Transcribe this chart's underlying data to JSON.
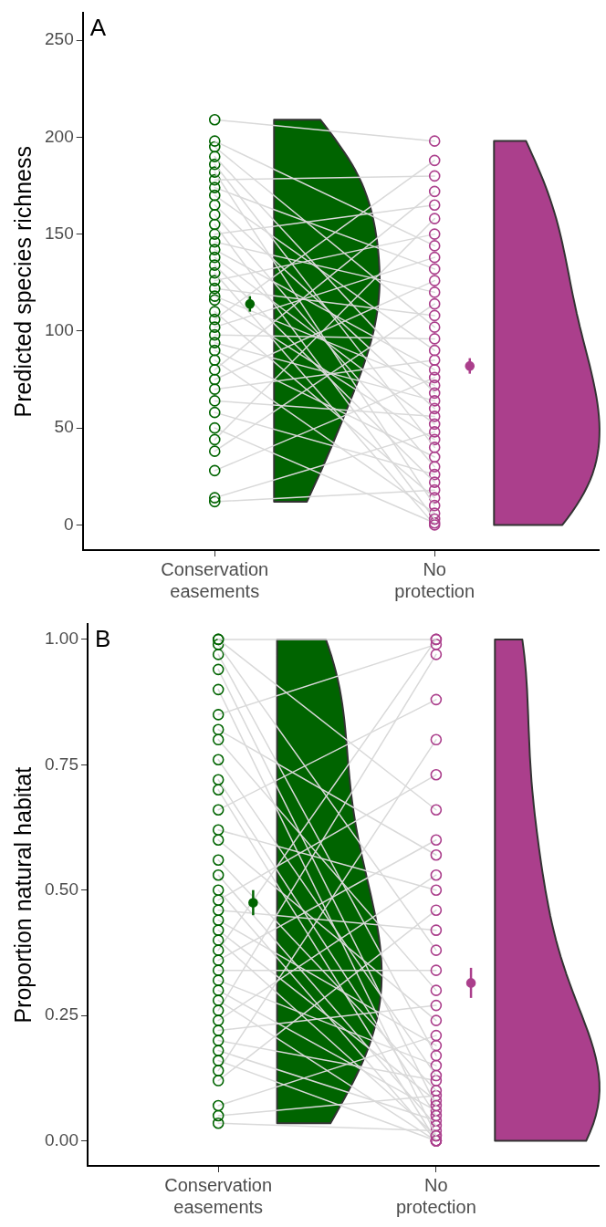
{
  "chart_data": [
    {
      "type": "scatter",
      "title": "A",
      "ylabel": "Predicted species richness",
      "categories": [
        "Conservation\neasements",
        "No\nprotection"
      ],
      "ylim": [
        -13,
        264
      ],
      "yticks": [
        0,
        50,
        100,
        150,
        200,
        250
      ],
      "grid": false,
      "legend": false,
      "marker": "circle",
      "series": [
        {
          "type": "line",
          "color": "#d9d9d9",
          "colors": [
            "#006400",
            "#ab3f8c"
          ],
          "values": [
            209,
            198
          ]
        },
        {
          "type": "line",
          "color": "#d9d9d9",
          "colors": [
            "#006400",
            "#ab3f8c"
          ],
          "values": [
            198,
            144
          ]
        },
        {
          "type": "line",
          "color": "#d9d9d9",
          "colors": [
            "#006400",
            "#ab3f8c"
          ],
          "values": [
            195,
            102
          ]
        },
        {
          "type": "line",
          "color": "#d9d9d9",
          "colors": [
            "#006400",
            "#ab3f8c"
          ],
          "values": [
            190,
            68
          ]
        },
        {
          "type": "line",
          "color": "#d9d9d9",
          "colors": [
            "#006400",
            "#ab3f8c"
          ],
          "values": [
            186,
            40
          ]
        },
        {
          "type": "line",
          "color": "#d9d9d9",
          "colors": [
            "#006400",
            "#ab3f8c"
          ],
          "values": [
            182,
            10
          ]
        },
        {
          "type": "line",
          "color": "#d9d9d9",
          "colors": [
            "#006400",
            "#ab3f8c"
          ],
          "values": [
            178,
            180
          ]
        },
        {
          "type": "line",
          "color": "#d9d9d9",
          "colors": [
            "#006400",
            "#ab3f8c"
          ],
          "values": [
            174,
            132
          ]
        },
        {
          "type": "line",
          "color": "#d9d9d9",
          "colors": [
            "#006400",
            "#ab3f8c"
          ],
          "values": [
            170,
            90
          ]
        },
        {
          "type": "line",
          "color": "#d9d9d9",
          "colors": [
            "#006400",
            "#ab3f8c"
          ],
          "values": [
            165,
            60
          ]
        },
        {
          "type": "line",
          "color": "#d9d9d9",
          "colors": [
            "#006400",
            "#ab3f8c"
          ],
          "values": [
            160,
            30
          ]
        },
        {
          "type": "line",
          "color": "#d9d9d9",
          "colors": [
            "#006400",
            "#ab3f8c"
          ],
          "values": [
            155,
            3
          ]
        },
        {
          "type": "line",
          "color": "#d9d9d9",
          "colors": [
            "#006400",
            "#ab3f8c"
          ],
          "values": [
            150,
            165
          ]
        },
        {
          "type": "line",
          "color": "#d9d9d9",
          "colors": [
            "#006400",
            "#ab3f8c"
          ],
          "values": [
            146,
            120
          ]
        },
        {
          "type": "line",
          "color": "#d9d9d9",
          "colors": [
            "#006400",
            "#ab3f8c"
          ],
          "values": [
            142,
            80
          ]
        },
        {
          "type": "line",
          "color": "#d9d9d9",
          "colors": [
            "#006400",
            "#ab3f8c"
          ],
          "values": [
            138,
            52
          ]
        },
        {
          "type": "line",
          "color": "#d9d9d9",
          "colors": [
            "#006400",
            "#ab3f8c"
          ],
          "values": [
            134,
            22
          ]
        },
        {
          "type": "line",
          "color": "#d9d9d9",
          "colors": [
            "#006400",
            "#ab3f8c"
          ],
          "values": [
            130,
            0
          ]
        },
        {
          "type": "line",
          "color": "#d9d9d9",
          "colors": [
            "#006400",
            "#ab3f8c"
          ],
          "values": [
            126,
            150
          ]
        },
        {
          "type": "line",
          "color": "#d9d9d9",
          "colors": [
            "#006400",
            "#ab3f8c"
          ],
          "values": [
            122,
            108
          ]
        },
        {
          "type": "line",
          "color": "#d9d9d9",
          "colors": [
            "#006400",
            "#ab3f8c"
          ],
          "values": [
            118,
            72
          ]
        },
        {
          "type": "line",
          "color": "#d9d9d9",
          "colors": [
            "#006400",
            "#ab3f8c"
          ],
          "values": [
            116,
            44
          ]
        },
        {
          "type": "line",
          "color": "#d9d9d9",
          "colors": [
            "#006400",
            "#ab3f8c"
          ],
          "values": [
            110,
            14
          ]
        },
        {
          "type": "line",
          "color": "#d9d9d9",
          "colors": [
            "#006400",
            "#ab3f8c"
          ],
          "values": [
            106,
            188
          ]
        },
        {
          "type": "line",
          "color": "#d9d9d9",
          "colors": [
            "#006400",
            "#ab3f8c"
          ],
          "values": [
            102,
            138
          ]
        },
        {
          "type": "line",
          "color": "#d9d9d9",
          "colors": [
            "#006400",
            "#ab3f8c"
          ],
          "values": [
            98,
            96
          ]
        },
        {
          "type": "line",
          "color": "#d9d9d9",
          "colors": [
            "#006400",
            "#ab3f8c"
          ],
          "values": [
            94,
            64
          ]
        },
        {
          "type": "line",
          "color": "#d9d9d9",
          "colors": [
            "#006400",
            "#ab3f8c"
          ],
          "values": [
            90,
            35
          ]
        },
        {
          "type": "line",
          "color": "#d9d9d9",
          "colors": [
            "#006400",
            "#ab3f8c"
          ],
          "values": [
            85,
            6
          ]
        },
        {
          "type": "line",
          "color": "#d9d9d9",
          "colors": [
            "#006400",
            "#ab3f8c"
          ],
          "values": [
            80,
            172
          ]
        },
        {
          "type": "line",
          "color": "#d9d9d9",
          "colors": [
            "#006400",
            "#ab3f8c"
          ],
          "values": [
            75,
            126
          ]
        },
        {
          "type": "line",
          "color": "#d9d9d9",
          "colors": [
            "#006400",
            "#ab3f8c"
          ],
          "values": [
            70,
            85
          ]
        },
        {
          "type": "line",
          "color": "#d9d9d9",
          "colors": [
            "#006400",
            "#ab3f8c"
          ],
          "values": [
            64,
            56
          ]
        },
        {
          "type": "line",
          "color": "#d9d9d9",
          "colors": [
            "#006400",
            "#ab3f8c"
          ],
          "values": [
            58,
            26
          ]
        },
        {
          "type": "line",
          "color": "#d9d9d9",
          "colors": [
            "#006400",
            "#ab3f8c"
          ],
          "values": [
            50,
            1
          ]
        },
        {
          "type": "line",
          "color": "#d9d9d9",
          "colors": [
            "#006400",
            "#ab3f8c"
          ],
          "values": [
            44,
            158
          ]
        },
        {
          "type": "line",
          "color": "#d9d9d9",
          "colors": [
            "#006400",
            "#ab3f8c"
          ],
          "values": [
            38,
            114
          ]
        },
        {
          "type": "line",
          "color": "#d9d9d9",
          "colors": [
            "#006400",
            "#ab3f8c"
          ],
          "values": [
            28,
            76
          ]
        },
        {
          "type": "line",
          "color": "#d9d9d9",
          "colors": [
            "#006400",
            "#ab3f8c"
          ],
          "values": [
            14,
            48
          ]
        },
        {
          "type": "line",
          "color": "#d9d9d9",
          "colors": [
            "#006400",
            "#ab3f8c"
          ],
          "values": [
            12,
            18
          ]
        },
        {
          "type": "scatter",
          "colors": [
            "#006400",
            "#ab3f8c"
          ],
          "values": [
            114,
            82
          ],
          "errors": [
            4,
            4
          ]
        }
      ]
    },
    {
      "type": "scatter",
      "title": "B",
      "ylabel": "Proportion natural habitat",
      "categories": [
        "Conservation\neasements",
        "No\nprotection"
      ],
      "ylim": [
        -0.05,
        1.03
      ],
      "yticks": [
        {
          "value": 0,
          "label": "0.00"
        },
        {
          "value": 0.25,
          "label": "0.25"
        },
        {
          "value": 0.5,
          "label": "0.50"
        },
        {
          "value": 0.75,
          "label": "0.75"
        },
        {
          "value": 1,
          "label": "1.00"
        }
      ],
      "grid": false,
      "legend": false,
      "marker": "circle",
      "series": [
        {
          "type": "line",
          "color": "#d9d9d9",
          "colors": [
            "#006400",
            "#ab3f8c"
          ],
          "values": [
            1.0,
            1.0
          ]
        },
        {
          "type": "line",
          "color": "#d9d9d9",
          "colors": [
            "#006400",
            "#ab3f8c"
          ],
          "values": [
            1.0,
            0.66
          ]
        },
        {
          "type": "line",
          "color": "#d9d9d9",
          "colors": [
            "#006400",
            "#ab3f8c"
          ],
          "values": [
            0.99,
            0.38
          ]
        },
        {
          "type": "line",
          "color": "#d9d9d9",
          "colors": [
            "#006400",
            "#ab3f8c"
          ],
          "values": [
            0.97,
            0.17
          ]
        },
        {
          "type": "line",
          "color": "#d9d9d9",
          "colors": [
            "#006400",
            "#ab3f8c"
          ],
          "values": [
            0.94,
            0.07
          ]
        },
        {
          "type": "line",
          "color": "#d9d9d9",
          "colors": [
            "#006400",
            "#ab3f8c"
          ],
          "values": [
            0.9,
            0.01
          ]
        },
        {
          "type": "line",
          "color": "#d9d9d9",
          "colors": [
            "#006400",
            "#ab3f8c"
          ],
          "values": [
            0.85,
            0.99
          ]
        },
        {
          "type": "line",
          "color": "#d9d9d9",
          "colors": [
            "#006400",
            "#ab3f8c"
          ],
          "values": [
            0.82,
            0.57
          ]
        },
        {
          "type": "line",
          "color": "#d9d9d9",
          "colors": [
            "#006400",
            "#ab3f8c"
          ],
          "values": [
            0.8,
            0.3
          ]
        },
        {
          "type": "line",
          "color": "#d9d9d9",
          "colors": [
            "#006400",
            "#ab3f8c"
          ],
          "values": [
            0.76,
            0.13
          ]
        },
        {
          "type": "line",
          "color": "#d9d9d9",
          "colors": [
            "#006400",
            "#ab3f8c"
          ],
          "values": [
            0.72,
            0.05
          ]
        },
        {
          "type": "line",
          "color": "#d9d9d9",
          "colors": [
            "#006400",
            "#ab3f8c"
          ],
          "values": [
            0.7,
            0.0
          ]
        },
        {
          "type": "line",
          "color": "#d9d9d9",
          "colors": [
            "#006400",
            "#ab3f8c"
          ],
          "values": [
            0.66,
            0.88
          ]
        },
        {
          "type": "line",
          "color": "#d9d9d9",
          "colors": [
            "#006400",
            "#ab3f8c"
          ],
          "values": [
            0.62,
            0.5
          ]
        },
        {
          "type": "line",
          "color": "#d9d9d9",
          "colors": [
            "#006400",
            "#ab3f8c"
          ],
          "values": [
            0.6,
            0.24
          ]
        },
        {
          "type": "line",
          "color": "#d9d9d9",
          "colors": [
            "#006400",
            "#ab3f8c"
          ],
          "values": [
            0.56,
            0.1
          ]
        },
        {
          "type": "line",
          "color": "#d9d9d9",
          "colors": [
            "#006400",
            "#ab3f8c"
          ],
          "values": [
            0.53,
            0.03
          ]
        },
        {
          "type": "line",
          "color": "#d9d9d9",
          "colors": [
            "#006400",
            "#ab3f8c"
          ],
          "values": [
            0.5,
            0.0
          ]
        },
        {
          "type": "line",
          "color": "#d9d9d9",
          "colors": [
            "#006400",
            "#ab3f8c"
          ],
          "values": [
            0.48,
            0.73
          ]
        },
        {
          "type": "line",
          "color": "#d9d9d9",
          "colors": [
            "#006400",
            "#ab3f8c"
          ],
          "values": [
            0.46,
            0.42
          ]
        },
        {
          "type": "line",
          "color": "#d9d9d9",
          "colors": [
            "#006400",
            "#ab3f8c"
          ],
          "values": [
            0.44,
            0.19
          ]
        },
        {
          "type": "line",
          "color": "#d9d9d9",
          "colors": [
            "#006400",
            "#ab3f8c"
          ],
          "values": [
            0.42,
            0.08
          ]
        },
        {
          "type": "line",
          "color": "#d9d9d9",
          "colors": [
            "#006400",
            "#ab3f8c"
          ],
          "values": [
            0.4,
            0.01
          ]
        },
        {
          "type": "line",
          "color": "#d9d9d9",
          "colors": [
            "#006400",
            "#ab3f8c"
          ],
          "values": [
            0.38,
            1.0
          ]
        },
        {
          "type": "line",
          "color": "#d9d9d9",
          "colors": [
            "#006400",
            "#ab3f8c"
          ],
          "values": [
            0.36,
            0.6
          ]
        },
        {
          "type": "line",
          "color": "#d9d9d9",
          "colors": [
            "#006400",
            "#ab3f8c"
          ],
          "values": [
            0.34,
            0.34
          ]
        },
        {
          "type": "line",
          "color": "#d9d9d9",
          "colors": [
            "#006400",
            "#ab3f8c"
          ],
          "values": [
            0.32,
            0.15
          ]
        },
        {
          "type": "line",
          "color": "#d9d9d9",
          "colors": [
            "#006400",
            "#ab3f8c"
          ],
          "values": [
            0.3,
            0.06
          ]
        },
        {
          "type": "line",
          "color": "#d9d9d9",
          "colors": [
            "#006400",
            "#ab3f8c"
          ],
          "values": [
            0.28,
            0.0
          ]
        },
        {
          "type": "line",
          "color": "#d9d9d9",
          "colors": [
            "#006400",
            "#ab3f8c"
          ],
          "values": [
            0.26,
            0.97
          ]
        },
        {
          "type": "line",
          "color": "#d9d9d9",
          "colors": [
            "#006400",
            "#ab3f8c"
          ],
          "values": [
            0.24,
            0.53
          ]
        },
        {
          "type": "line",
          "color": "#d9d9d9",
          "colors": [
            "#006400",
            "#ab3f8c"
          ],
          "values": [
            0.22,
            0.27
          ]
        },
        {
          "type": "line",
          "color": "#d9d9d9",
          "colors": [
            "#006400",
            "#ab3f8c"
          ],
          "values": [
            0.2,
            0.12
          ]
        },
        {
          "type": "line",
          "color": "#d9d9d9",
          "colors": [
            "#006400",
            "#ab3f8c"
          ],
          "values": [
            0.18,
            0.04
          ]
        },
        {
          "type": "line",
          "color": "#d9d9d9",
          "colors": [
            "#006400",
            "#ab3f8c"
          ],
          "values": [
            0.16,
            0.0
          ]
        },
        {
          "type": "line",
          "color": "#d9d9d9",
          "colors": [
            "#006400",
            "#ab3f8c"
          ],
          "values": [
            0.14,
            0.8
          ]
        },
        {
          "type": "line",
          "color": "#d9d9d9",
          "colors": [
            "#006400",
            "#ab3f8c"
          ],
          "values": [
            0.12,
            0.46
          ]
        },
        {
          "type": "line",
          "color": "#d9d9d9",
          "colors": [
            "#006400",
            "#ab3f8c"
          ],
          "values": [
            0.07,
            0.21
          ]
        },
        {
          "type": "line",
          "color": "#d9d9d9",
          "colors": [
            "#006400",
            "#ab3f8c"
          ],
          "values": [
            0.05,
            0.09
          ]
        },
        {
          "type": "line",
          "color": "#d9d9d9",
          "colors": [
            "#006400",
            "#ab3f8c"
          ],
          "values": [
            0.035,
            0.02
          ]
        },
        {
          "type": "scatter",
          "colors": [
            "#006400",
            "#ab3f8c"
          ],
          "values": [
            0.475,
            0.315
          ],
          "errors": [
            0.025,
            0.03
          ]
        }
      ]
    }
  ]
}
